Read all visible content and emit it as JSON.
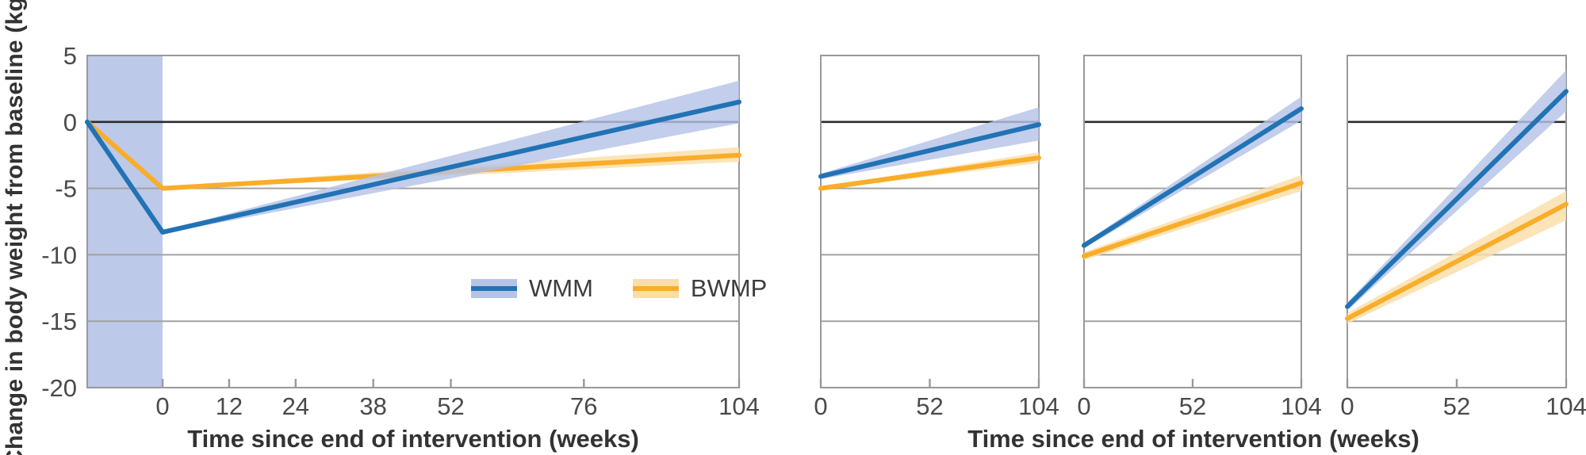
{
  "chart_data": {
    "type": "line",
    "ylabel": "Change in body weight from baseline (kg)",
    "xlabel_main": "Time since end of intervention (weeks)",
    "xlabel_small_panels": "Time since end of intervention (weeks)",
    "ylim": [
      -20,
      5
    ],
    "y_ticks": [
      5,
      0,
      -5,
      -10,
      -15,
      -20
    ],
    "y_gridlines": [
      -5,
      -10,
      -15
    ],
    "zero_line": 0,
    "legend": {
      "entries": [
        "WMM",
        "BWMP"
      ],
      "position": "inside main panel, lower right"
    },
    "colors": {
      "wmm_line": "#2173b5",
      "wmm_band": "#b5c3e6",
      "bwmp_line": "#f9ad29",
      "bwmp_band": "#fadea8",
      "band_opacity": 0.82,
      "intervention_shade": "#bdc9e8",
      "grid": "#a2a2a2",
      "border": "#999999",
      "zero": "#2b2b2b",
      "tick_text": "#4a4a4a",
      "title_text": "#333333"
    },
    "panels": [
      {
        "name": "all-interventions-main",
        "xlim": [
          -13.6,
          104
        ],
        "x_ticks": [
          0,
          12,
          24,
          38,
          52,
          76,
          104
        ],
        "show_y_tick_labels": true,
        "intervention_shade_x": [
          -13.6,
          0
        ],
        "series": [
          {
            "name": "BWMP",
            "points": [
              [
                -13.6,
                0
              ],
              [
                0,
                -5.0
              ],
              [
                104,
                -2.5
              ]
            ],
            "band": [
              [
                0,
                -5.1,
                -4.9
              ],
              [
                104,
                -3.0,
                -1.9
              ]
            ]
          },
          {
            "name": "WMM",
            "points": [
              [
                -13.6,
                0
              ],
              [
                0,
                -8.3
              ],
              [
                104,
                1.5
              ]
            ],
            "band": [
              [
                0,
                -8.4,
                -8.2
              ],
              [
                104,
                -0.1,
                3.1
              ]
            ]
          }
        ]
      },
      {
        "name": "small-panel-1",
        "xlim": [
          0,
          104
        ],
        "x_ticks": [
          0,
          52,
          104
        ],
        "show_y_tick_labels": false,
        "intervention_shade_x": null,
        "series": [
          {
            "name": "BWMP",
            "points": [
              [
                0,
                -5.0
              ],
              [
                104,
                -2.7
              ]
            ],
            "band": [
              [
                0,
                -5.1,
                -4.9
              ],
              [
                104,
                -3.1,
                -2.3
              ]
            ]
          },
          {
            "name": "WMM",
            "points": [
              [
                0,
                -4.1
              ],
              [
                104,
                -0.2
              ]
            ],
            "band": [
              [
                0,
                -4.3,
                -3.9
              ],
              [
                104,
                -1.4,
                1.1
              ]
            ]
          }
        ]
      },
      {
        "name": "small-panel-2",
        "xlim": [
          0,
          104
        ],
        "x_ticks": [
          0,
          52,
          104
        ],
        "show_y_tick_labels": false,
        "intervention_shade_x": null,
        "series": [
          {
            "name": "BWMP",
            "points": [
              [
                0,
                -10.1
              ],
              [
                104,
                -4.6
              ]
            ],
            "band": [
              [
                0,
                -10.4,
                -9.8
              ],
              [
                104,
                -5.2,
                -4.0
              ]
            ]
          },
          {
            "name": "WMM",
            "points": [
              [
                0,
                -9.3
              ],
              [
                104,
                1.0
              ]
            ],
            "band": [
              [
                0,
                -9.5,
                -9.1
              ],
              [
                104,
                0.1,
                1.9
              ]
            ]
          }
        ]
      },
      {
        "name": "small-panel-3",
        "xlim": [
          0,
          104
        ],
        "x_ticks": [
          0,
          52,
          104
        ],
        "show_y_tick_labels": false,
        "intervention_shade_x": null,
        "series": [
          {
            "name": "BWMP",
            "points": [
              [
                0,
                -14.8
              ],
              [
                104,
                -6.2
              ]
            ],
            "band": [
              [
                0,
                -15.2,
                -14.4
              ],
              [
                104,
                -7.4,
                -5.2
              ]
            ]
          },
          {
            "name": "WMM",
            "points": [
              [
                0,
                -13.9
              ],
              [
                104,
                2.3
              ]
            ],
            "band": [
              [
                0,
                -14.2,
                -13.6
              ],
              [
                104,
                0.8,
                3.9
              ]
            ]
          }
        ]
      }
    ]
  }
}
